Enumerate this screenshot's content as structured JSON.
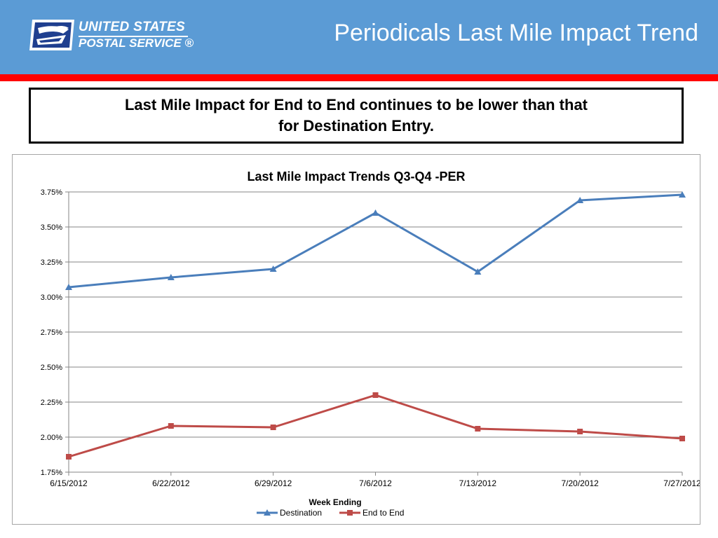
{
  "header": {
    "logo": {
      "line1": "UNITED STATES",
      "line2": "POSTAL SERVICE ®",
      "icon": "eagle-logo-icon"
    },
    "title": "Periodicals Last Mile Impact Trend"
  },
  "callout": {
    "text": "Last Mile Impact for End to End continues to be lower than that for Destination Entry."
  },
  "colors": {
    "header_blue": "#5b9bd5",
    "header_red": "#ff0000",
    "destination": "#4a7ebb",
    "end_to_end": "#be4b48"
  },
  "chart_data": {
    "type": "line",
    "title": "Last Mile Impact Trends Q3-Q4 -PER",
    "xlabel": "Week Ending",
    "ylabel": "",
    "categories": [
      "6/15/2012",
      "6/22/2012",
      "6/29/2012",
      "7/6/2012",
      "7/13/2012",
      "7/20/2012",
      "7/27/2012"
    ],
    "x_ticks": [
      {
        "label": "6/15/2012",
        "date": "2012-06-15"
      },
      {
        "label": "6/22/2012",
        "date": "2012-06-22"
      },
      {
        "label": "6/29/2012",
        "date": "2012-06-29"
      },
      {
        "label": "7/6/2012",
        "date": "2012-07-06"
      },
      {
        "label": "7/13/2012",
        "date": "2012-07-13"
      },
      {
        "label": "7/20/2012",
        "date": "2012-07-20"
      },
      {
        "label": "7/27/2012",
        "date": "2012-07-27"
      }
    ],
    "ylim": [
      1.75,
      3.75
    ],
    "y_ticks": [
      {
        "value": 1.75,
        "label": "1.75%"
      },
      {
        "value": 2.0,
        "label": "2.00%"
      },
      {
        "value": 2.25,
        "label": "2.25%"
      },
      {
        "value": 2.5,
        "label": "2.50%"
      },
      {
        "value": 2.75,
        "label": "2.75%"
      },
      {
        "value": 3.0,
        "label": "3.00%"
      },
      {
        "value": 3.25,
        "label": "3.25%"
      },
      {
        "value": 3.5,
        "label": "3.50%"
      },
      {
        "value": 3.75,
        "label": "3.75%"
      }
    ],
    "grid": "horizontal",
    "legend_position": "bottom",
    "series": [
      {
        "name": "Destination",
        "marker": "triangle",
        "points": [
          {
            "x": "2012-06-15",
            "y": 3.07
          },
          {
            "x": "2012-06-22",
            "y": 3.14
          },
          {
            "x": "2012-06-29",
            "y": 3.2
          },
          {
            "x": "2012-07-06",
            "y": 3.6
          },
          {
            "x": "2012-07-13",
            "y": 3.18
          },
          {
            "x": "2012-07-20",
            "y": 3.69
          },
          {
            "x": "2012-07-27",
            "y": 3.73
          }
        ]
      },
      {
        "name": "End to End",
        "marker": "square",
        "points": [
          {
            "x": "2012-06-15",
            "y": 1.86
          },
          {
            "x": "2012-06-22",
            "y": 2.08
          },
          {
            "x": "2012-06-29",
            "y": 2.07
          },
          {
            "x": "2012-07-06",
            "y": 2.3
          },
          {
            "x": "2012-07-13",
            "y": 2.06
          },
          {
            "x": "2012-07-20",
            "y": 2.04
          },
          {
            "x": "2012-07-27",
            "y": 1.99
          }
        ]
      }
    ]
  }
}
